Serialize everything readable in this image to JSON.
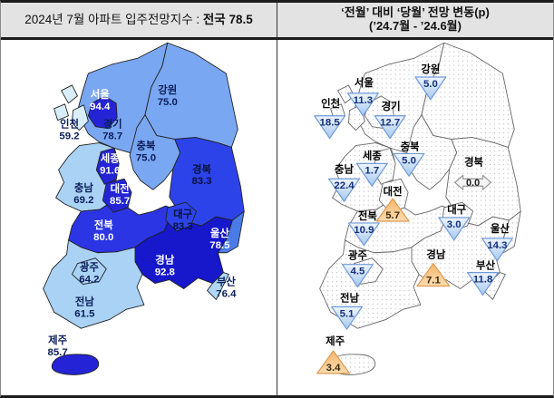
{
  "header": {
    "left": {
      "prefix": "2024년 7월 아파트 입주전망지수 : ",
      "strong": "전국 78.5"
    },
    "right": {
      "line1": "‘전월’ 대비 ‘당월’ 전망 변동(p)",
      "line2": "(’24.7월 - ’24.6월)"
    }
  },
  "palette": {
    "border": "#222222",
    "right_border": "#666666",
    "dot": "#bdbdbd",
    "down_fill_top": "#eef5fd",
    "down_fill_bottom": "#a6c8ef",
    "down_stroke": "#6f9ad8",
    "down_value_color": "#15307a",
    "up_fill_top": "#f6b76f",
    "up_fill_bottom": "#fbdcae",
    "up_stroke": "#dd9a55",
    "up_value_color": "#3a2a10",
    "flat_fill": "#f4f4f4",
    "flat_stroke": "#999999",
    "flat_value_color": "#222222",
    "region_name_color": "#000000"
  },
  "left_map": {
    "regions": [
      {
        "id": "gyeonggi",
        "name": "경기",
        "value": "78.7",
        "fill": "#7aa7f2",
        "text_color": "#0b1e5a"
      },
      {
        "id": "gangwon",
        "name": "강원",
        "value": "75.0",
        "fill": "#7aa7f2",
        "text_color": "#0b1e5a"
      },
      {
        "id": "chungbuk",
        "name": "충북",
        "value": "75.0",
        "fill": "#7aa7f2",
        "text_color": "#0b1e5a"
      },
      {
        "id": "chungnam",
        "name": "충남",
        "value": "69.2",
        "fill": "#a9d2f4",
        "text_color": "#0b1e5a"
      },
      {
        "id": "gyeongbuk",
        "name": "경북",
        "value": "83.3",
        "fill": "#2d43ea",
        "text_color": "#07123d"
      },
      {
        "id": "jeonbuk",
        "name": "전북",
        "value": "80.0",
        "fill": "#2b35e4",
        "text_color": "#ffffff"
      },
      {
        "id": "gyeongnam",
        "name": "경남",
        "value": "92.8",
        "fill": "#1717cb",
        "text_color": "#ffffff"
      },
      {
        "id": "jeonnam",
        "name": "전남",
        "value": "61.5",
        "fill": "#a9d2f4",
        "text_color": "#0b1e5a"
      },
      {
        "id": "ulsan",
        "name": "울산",
        "value": "78.5",
        "fill": "#4a7ce8",
        "text_color": "#ffffff"
      },
      {
        "id": "busan",
        "name": "부산",
        "value": "76.4",
        "fill": "#b0d8f5",
        "text_color": "#0b1e5a"
      },
      {
        "id": "incheon",
        "name": "인천",
        "value": "59.2",
        "fill": "#d9eefb",
        "text_color": "#0b1e5a"
      },
      {
        "id": "seoul",
        "name": "서울",
        "value": "94.4",
        "fill": "#2424d6",
        "text_color": "#ffffff"
      },
      {
        "id": "sejong",
        "name": "세종",
        "value": "91.6",
        "fill": "#2424d6",
        "text_color": "#ffffff"
      },
      {
        "id": "daejeon",
        "name": "대전",
        "value": "85.7",
        "fill": "#2424d6",
        "text_color": "#ffffff"
      },
      {
        "id": "daegu",
        "name": "대구",
        "value": "83.3",
        "fill": "#2d43ea",
        "text_color": "#07123d"
      },
      {
        "id": "gwangju",
        "name": "광주",
        "value": "64.2",
        "fill": "#a9d2f4",
        "text_color": "#0b1e5a"
      },
      {
        "id": "jeju",
        "name": "제주",
        "value": "85.7",
        "fill": "#2424d6",
        "text_color": "#0b1e5a"
      }
    ]
  },
  "right_map": {
    "markers": [
      {
        "id": "incheon",
        "name": "인천",
        "value": "18.5",
        "dir": "down"
      },
      {
        "id": "seoul",
        "name": "서울",
        "value": "11.3",
        "dir": "down"
      },
      {
        "id": "gyeonggi",
        "name": "경기",
        "value": "12.7",
        "dir": "down"
      },
      {
        "id": "gangwon",
        "name": "강원",
        "value": "5.0",
        "dir": "down"
      },
      {
        "id": "chungbuk",
        "name": "충북",
        "value": "5.0",
        "dir": "down"
      },
      {
        "id": "sejong",
        "name": "세종",
        "value": "1.7",
        "dir": "down"
      },
      {
        "id": "chungnam",
        "name": "충남",
        "value": "22.4",
        "dir": "down"
      },
      {
        "id": "daejeon",
        "name": "대전",
        "value": "5.7",
        "dir": "up"
      },
      {
        "id": "gyeongbuk",
        "name": "경북",
        "value": "0.0",
        "dir": "flat"
      },
      {
        "id": "jeonbuk",
        "name": "전북",
        "value": "10.9",
        "dir": "down"
      },
      {
        "id": "daegu",
        "name": "대구",
        "value": "3.0",
        "dir": "down"
      },
      {
        "id": "ulsan",
        "name": "울산",
        "value": "14.3",
        "dir": "down"
      },
      {
        "id": "gwangju",
        "name": "광주",
        "value": "4.5",
        "dir": "down"
      },
      {
        "id": "gyeongnam",
        "name": "경남",
        "value": "7.1",
        "dir": "up"
      },
      {
        "id": "busan",
        "name": "부산",
        "value": "11.8",
        "dir": "down"
      },
      {
        "id": "jeonnam",
        "name": "전남",
        "value": "5.1",
        "dir": "down"
      },
      {
        "id": "jeju",
        "name": "제주",
        "value": "3.4",
        "dir": "up"
      }
    ]
  },
  "chart_data": [
    {
      "type": "heatmap",
      "subtype": "choropleth-map-of-south-korea",
      "title": "2024년 7월 아파트 입주전망지수 : 전국 78.5",
      "national_value": 78.5,
      "categories": [
        "서울",
        "인천",
        "경기",
        "강원",
        "충북",
        "세종",
        "충남",
        "대전",
        "경북",
        "전북",
        "대구",
        "울산",
        "경남",
        "광주",
        "전남",
        "부산",
        "제주"
      ],
      "values": [
        94.4,
        59.2,
        78.7,
        75.0,
        75.0,
        91.6,
        69.2,
        85.7,
        83.3,
        80.0,
        83.3,
        78.5,
        92.8,
        64.2,
        61.5,
        76.4,
        85.7
      ],
      "legend_position": "none",
      "color_meaning": "darker blue = higher index"
    },
    {
      "type": "heatmap",
      "subtype": "symbol-map-of-south-korea",
      "title": "‘전월’ 대비 ‘당월’ 전망 변동(p) (’24.7월 - ’24.6월)",
      "categories": [
        "서울",
        "인천",
        "경기",
        "강원",
        "충북",
        "세종",
        "충남",
        "대전",
        "경북",
        "전북",
        "대구",
        "울산",
        "경남",
        "광주",
        "전남",
        "부산",
        "제주"
      ],
      "values": [
        -11.3,
        -18.5,
        -12.7,
        -5.0,
        -5.0,
        -1.7,
        -22.4,
        5.7,
        0.0,
        -10.9,
        -3.0,
        -14.3,
        7.1,
        -4.5,
        -5.1,
        -11.8,
        3.4
      ],
      "directions": [
        "down",
        "down",
        "down",
        "down",
        "down",
        "down",
        "down",
        "up",
        "flat",
        "down",
        "down",
        "down",
        "up",
        "down",
        "down",
        "down",
        "up"
      ],
      "symbol_meaning": "blue down-triangle = decrease, orange up-triangle = increase, gray double-arrow = no change",
      "legend_position": "none"
    }
  ]
}
